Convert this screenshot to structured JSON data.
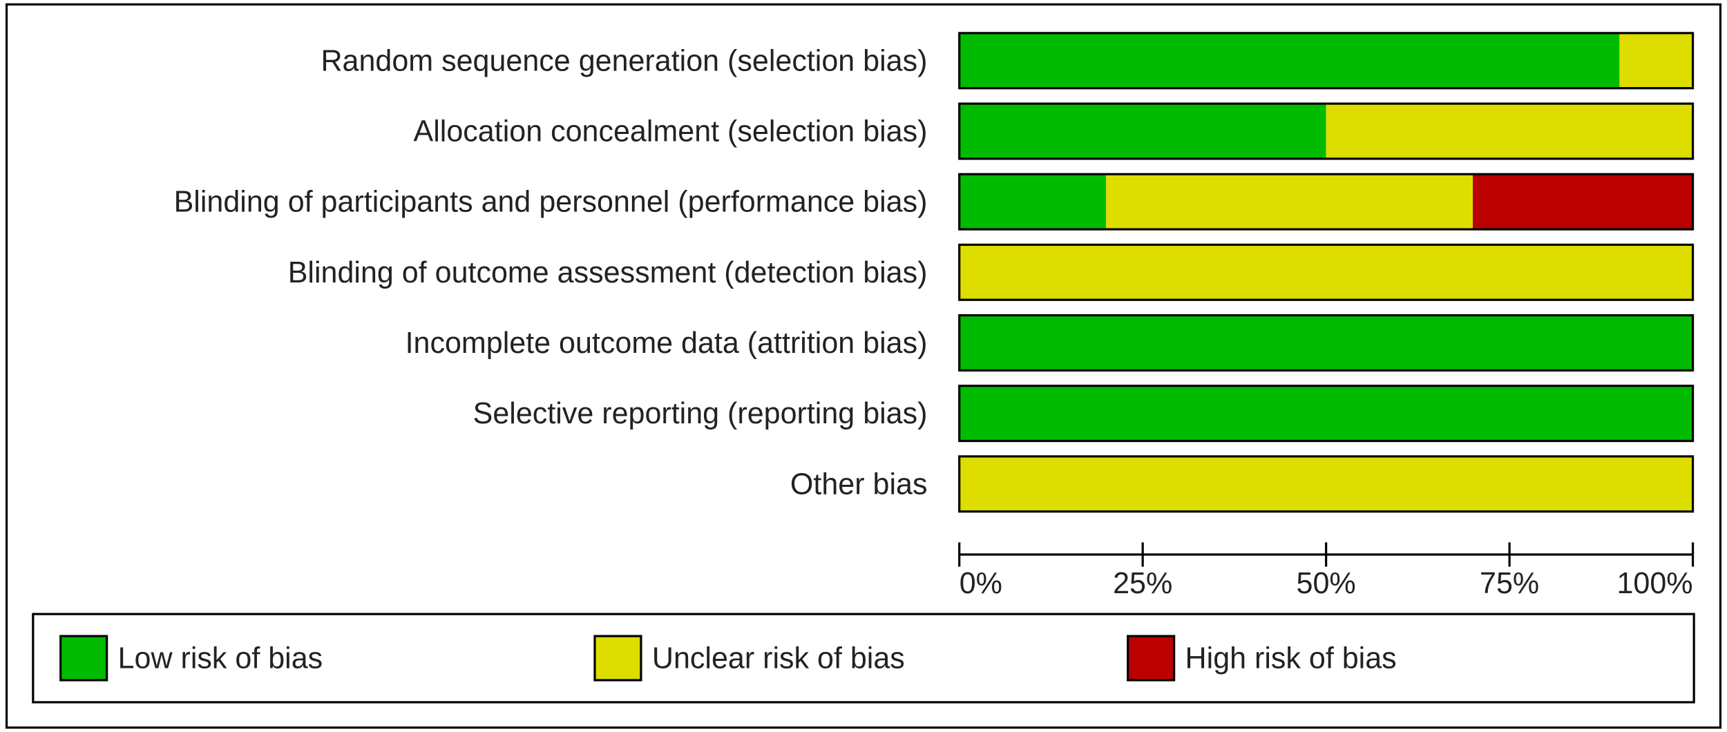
{
  "chart_data": {
    "type": "bar",
    "orientation": "horizontal",
    "stacked": true,
    "categories": [
      "Random sequence generation (selection bias)",
      "Allocation concealment (selection bias)",
      "Blinding of participants and personnel (performance bias)",
      "Blinding of outcome assessment (detection bias)",
      "Incomplete outcome data (attrition bias)",
      "Selective reporting (reporting bias)",
      "Other bias"
    ],
    "series": [
      {
        "name": "Low risk of bias",
        "color": "#00bb00",
        "values": [
          90,
          50,
          20,
          0,
          100,
          100,
          0
        ]
      },
      {
        "name": "Unclear risk of bias",
        "color": "#dddd00",
        "values": [
          10,
          50,
          50,
          100,
          0,
          0,
          100
        ]
      },
      {
        "name": "High risk of bias",
        "color": "#bb0000",
        "values": [
          0,
          0,
          30,
          0,
          0,
          0,
          0
        ]
      }
    ],
    "xlim": [
      0,
      100
    ],
    "xticks": [
      {
        "value": 0,
        "label": "0%"
      },
      {
        "value": 25,
        "label": "25%"
      },
      {
        "value": 50,
        "label": "50%"
      },
      {
        "value": 75,
        "label": "75%"
      },
      {
        "value": 100,
        "label": "100%"
      }
    ],
    "legend": "bottom"
  }
}
